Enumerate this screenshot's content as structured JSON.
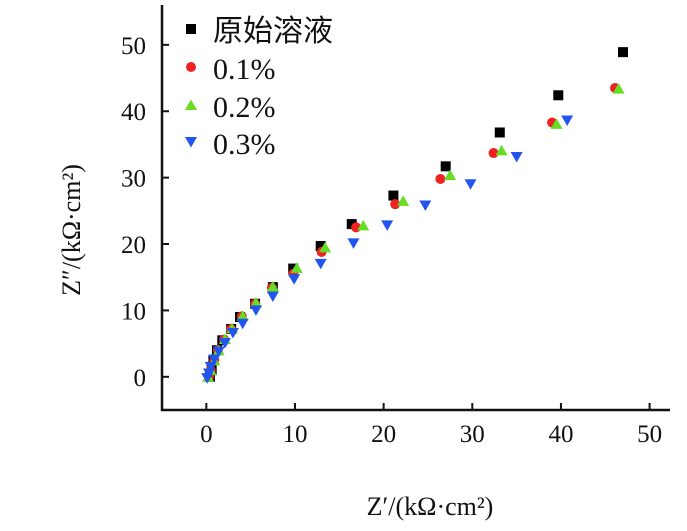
{
  "chart_data": {
    "type": "scatter",
    "title": "",
    "xlabel": "Z′/(kΩ·cm²)",
    "ylabel": "Z″/(kΩ·cm²)",
    "xlim": [
      -5,
      52.3
    ],
    "ylim": [
      -5,
      56
    ],
    "xticks": [
      0,
      10,
      20,
      30,
      40,
      50
    ],
    "yticks": [
      0,
      10,
      20,
      30,
      40,
      50
    ],
    "grid": false,
    "legend_position": "top-left",
    "series": [
      {
        "name": "原始溶液",
        "marker": "square",
        "color": "#000000",
        "x": [
          0.4,
          0.6,
          0.8,
          1.2,
          1.8,
          2.8,
          3.8,
          5.5,
          7.5,
          9.8,
          12.9,
          16.4,
          21.1,
          27.0,
          33.1,
          39.7,
          47.0
        ],
        "y": [
          0.0,
          1.0,
          2.5,
          4.0,
          5.5,
          7.2,
          9.0,
          11.0,
          13.5,
          16.3,
          19.7,
          23.0,
          27.3,
          31.7,
          36.8,
          42.4,
          48.9
        ]
      },
      {
        "name": "0.1%",
        "marker": "circle",
        "color": "#ee2222",
        "x": [
          0.3,
          0.5,
          0.9,
          1.3,
          2.0,
          2.8,
          4.0,
          5.5,
          7.4,
          9.8,
          13.0,
          16.9,
          21.3,
          26.4,
          32.4,
          39.0,
          46.1
        ],
        "y": [
          0.0,
          1.0,
          2.5,
          4.0,
          5.6,
          7.2,
          9.1,
          11.0,
          13.4,
          15.5,
          18.8,
          22.5,
          26.0,
          29.8,
          33.7,
          38.3,
          43.5
        ]
      },
      {
        "name": "0.2%",
        "marker": "triangle-up",
        "color": "#66dd22",
        "x": [
          0.2,
          0.5,
          0.9,
          1.4,
          2.1,
          2.9,
          4.1,
          5.6,
          7.5,
          10.2,
          13.4,
          17.7,
          22.2,
          27.5,
          33.3,
          39.5,
          46.5
        ],
        "y": [
          0.0,
          1.0,
          2.5,
          4.0,
          5.7,
          7.3,
          9.2,
          11.2,
          13.6,
          16.4,
          19.5,
          22.8,
          26.5,
          30.4,
          34.1,
          38.1,
          43.4
        ]
      },
      {
        "name": "0.3%",
        "marker": "triangle-down",
        "color": "#2255ee",
        "x": [
          0.1,
          0.3,
          0.5,
          0.9,
          1.4,
          2.1,
          3.0,
          4.1,
          5.6,
          7.5,
          9.9,
          12.9,
          16.6,
          20.4,
          24.7,
          29.8,
          35.0,
          40.7
        ],
        "y": [
          -0.2,
          0.5,
          1.5,
          2.6,
          3.8,
          5.1,
          6.6,
          8.0,
          10.0,
          12.1,
          14.7,
          17.0,
          20.1,
          22.8,
          25.8,
          29.0,
          33.1,
          38.6
        ]
      }
    ]
  }
}
